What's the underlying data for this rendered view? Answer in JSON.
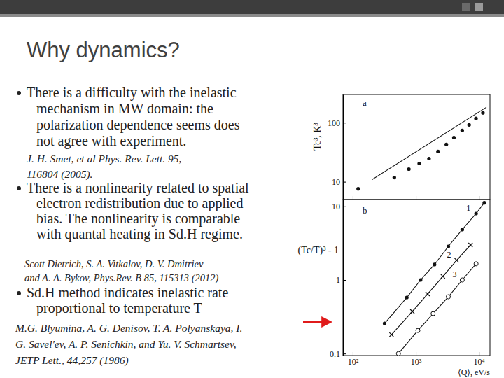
{
  "slide": {
    "title": "Why dynamics?",
    "bullets": [
      {
        "lines": [
          "There is a difficulty with the inelastic",
          "mechanism in MW domain: the",
          "polarization dependence seems does",
          "not agree with experiment."
        ],
        "reference": [
          "J. H. Smet,  et al Phys. Rev. Lett. 95,",
          "116804 (2005)."
        ]
      },
      {
        "lines": [
          "There is a nonlinearity related to spatial",
          "electron redistribution due to applied",
          "bias. The nonlinearity is comparable",
          "with quantal heating in Sd.H regime."
        ],
        "reference": [
          "Scott Dietrich, S. A. Vitkalov, D. V. Dmitriev",
          "and A. A. Bykov,  Phys.Rev. B 85, 115313 (2012)"
        ]
      },
      {
        "lines": [
          "Sd.H method indicates inelastic rate",
          "proportional to temperature T"
        ],
        "reference": [
          "M.G. Blyumina, A. G. Denisov, T. A. Polyanskaya, I.",
          "G. Savel'ev, A. P. Senichkin,  and Yu. V. Schmartsev,",
          "JETP Lett., 44,257 (1986)"
        ]
      }
    ]
  },
  "chart_data": [
    {
      "type": "scatter",
      "title": "a",
      "ylabel": "Tc³, K³",
      "log": true,
      "tick_labels": "y",
      "xlim": [
        70,
        15000
      ],
      "xticks": [
        100,
        1000,
        10000
      ],
      "ylim": [
        5,
        300
      ],
      "yticks": [
        10,
        100
      ],
      "series": [
        {
          "type": "scatter",
          "marker": "dot",
          "x": [
            122,
            456,
            776,
            1135,
            1620,
            2250,
            3050,
            4020,
            5450,
            7000,
            9000,
            11600
          ],
          "values": [
            7.6,
            11.8,
            16.4,
            20.4,
            24.7,
            32.5,
            42.8,
            56,
            74,
            92,
            118,
            147
          ]
        },
        {
          "type": "line",
          "line_style": "solid",
          "x": [
            203,
            13200
          ],
          "values": [
            10.9,
            183
          ]
        }
      ]
    },
    {
      "type": "line",
      "title": "b",
      "ylabel": "(Tc/T)³ - 1",
      "xlabel": "⟨Q⟩, eV/s",
      "log": true,
      "xlim": [
        70,
        15000
      ],
      "xticks": [
        {
          "value": 100,
          "label": "10²"
        },
        {
          "value": 1000,
          "label": "10³"
        },
        {
          "value": 10000,
          "label": "10⁴"
        }
      ],
      "ylim": [
        0.094,
        12.4
      ],
      "yticks": [
        0.1,
        1,
        10
      ],
      "series": [
        {
          "name": "1",
          "marker": "dot",
          "line_style": "solid",
          "x": [
            320,
            720,
            1190,
            1980,
            3280,
            5450,
            9030,
            12200
          ],
          "values": [
            0.257,
            0.578,
            1.0,
            1.62,
            2.86,
            4.85,
            8.0,
            11.2
          ]
        },
        {
          "name": "2",
          "marker": "cross",
          "line_style": "solid",
          "x": [
            412,
            881,
            1540,
            2690,
            4450,
            7380
          ],
          "values": [
            0.181,
            0.373,
            0.645,
            1.12,
            1.85,
            2.99
          ]
        },
        {
          "name": "3",
          "marker": "circle",
          "line_style": "solid",
          "x": [
            531,
            1080,
            1880,
            3280,
            5450,
            9030
          ],
          "values": [
            0.1,
            0.206,
            0.349,
            0.591,
            1.0,
            1.66
          ]
        }
      ]
    }
  ]
}
